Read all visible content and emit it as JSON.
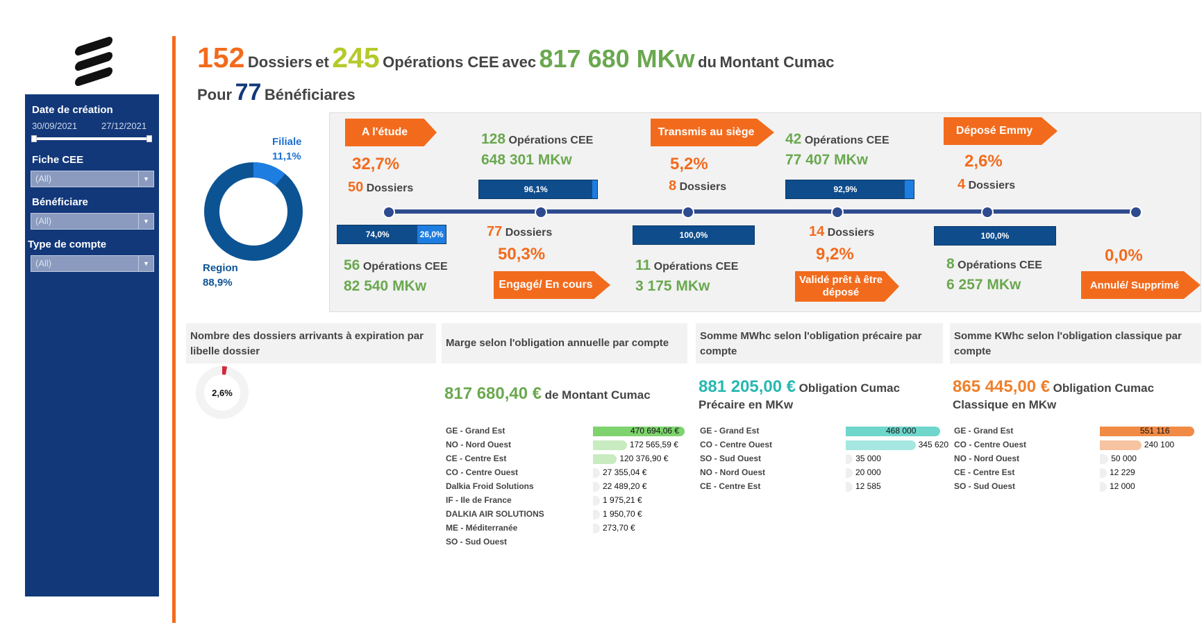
{
  "header": {
    "dossiers_count": "152",
    "dossiers_label": "Dossiers",
    "et": "et",
    "operations_count": "245",
    "operations_label": "Opérations CEE",
    "avec": "avec",
    "montant": "817 680 MKw",
    "du": "du",
    "montant_label": "Montant Cumac",
    "pour": "Pour",
    "beneficiaires_count": "77",
    "beneficiaires_label": "Bénéficiares"
  },
  "sidebar": {
    "date_label": "Date de création",
    "date_start": "30/09/2021",
    "date_end": "27/12/2021",
    "fiche_label": "Fiche CEE",
    "fiche_value": "(All)",
    "beneficiaire_label": "Bénéficiare",
    "beneficiaire_value": "(All)",
    "type_label": "Type de compte",
    "type_value": "(All)"
  },
  "donut": {
    "filiale_label": "Filiale",
    "filiale_pct": "11,1%",
    "region_label": "Region",
    "region_pct": "88,9%",
    "filiale_share": 0.111
  },
  "process": {
    "etude": {
      "label": "A l'étude",
      "pct": "32,7%",
      "dossiers_n": "50",
      "dossiers_label": "Dossiers",
      "ops_n": "56",
      "ops_label": "Opérations CEE",
      "mkw": "82 540 MKw",
      "bar_a": "74,0%",
      "bar_b": "26,0%"
    },
    "engage": {
      "label": "Engagé/ En cours",
      "pct": "50,3%",
      "dossiers_n": "77",
      "dossiers_label": "Dossiers",
      "ops_n": "128",
      "ops_label": "Opérations CEE",
      "mkw": "648 301 MKw",
      "bar": "96,1%"
    },
    "transmis": {
      "label": "Transmis au siège",
      "pct": "5,2%",
      "dossiers_n": "8",
      "dossiers_label": "Dossiers",
      "ops_n": "11",
      "ops_label": "Opérations CEE",
      "mkw": "3 175 MKw",
      "bar": "100,0%"
    },
    "valide": {
      "label": "Validé prêt à être déposé",
      "pct": "9,2%",
      "dossiers_n": "14",
      "dossiers_label": "Dossiers",
      "ops_n": "42",
      "ops_label": "Opérations CEE",
      "mkw": "77 407 MKw",
      "bar": "92,9%"
    },
    "depose": {
      "label": "Déposé Emmy",
      "pct": "2,6%",
      "dossiers_n": "4",
      "dossiers_label": "Dossiers",
      "ops_n": "8",
      "ops_label": "Opérations CEE",
      "mkw": "6 257 MKw",
      "bar": "100,0%"
    },
    "annule": {
      "label": "Annulé/ Supprimé",
      "pct": "0,0%"
    }
  },
  "panels": {
    "expiration": {
      "title": "Nombre des dossiers arrivants à expiration par libelle dossier",
      "pct": "2,6%",
      "share": 0.026
    },
    "marge": {
      "title": "Marge selon l'obligation annuelle par compte",
      "value": "817 680,40 €",
      "value_label": "de Montant Cumac",
      "rows": [
        {
          "label": "GE - Grand Est",
          "value": "470 694,06 €",
          "ratio": 1.0
        },
        {
          "label": "NO - Nord Ouest",
          "value": "172 565,59 €",
          "ratio": 0.37
        },
        {
          "label": "CE - Centre Est",
          "value": "120 376,90 €",
          "ratio": 0.26
        },
        {
          "label": "CO - Centre Ouest",
          "value": "27 355,04 €",
          "ratio": 0.06
        },
        {
          "label": "Dalkia Froid Solutions",
          "value": "22 489,20 €",
          "ratio": 0.05
        },
        {
          "label": "IF - Ile de France",
          "value": "1 975,21 €",
          "ratio": 0.004
        },
        {
          "label": "DALKIA AIR SOLUTIONS",
          "value": "1 950,70 €",
          "ratio": 0.004
        },
        {
          "label": "ME - Méditerranée",
          "value": "273,70 €",
          "ratio": 0.001
        },
        {
          "label": "SO - Sud Ouest",
          "value": "",
          "ratio": 0
        }
      ]
    },
    "precaire": {
      "title": "Somme MWhc selon l'obligation précaire par compte",
      "value": "881 205,00 €",
      "value_label": "Obligation Cumac",
      "value_sub": "Précaire en MKw",
      "rows": [
        {
          "label": "GE - Grand Est",
          "value": "468 000",
          "ratio": 1.0
        },
        {
          "label": "CO - Centre Ouest",
          "value": "345 620",
          "ratio": 0.74
        },
        {
          "label": "SO - Sud Ouest",
          "value": "35 000",
          "ratio": 0.075
        },
        {
          "label": "NO - Nord Ouest",
          "value": "20 000",
          "ratio": 0.043
        },
        {
          "label": "CE - Centre Est",
          "value": "12 585",
          "ratio": 0.027
        }
      ]
    },
    "classique": {
      "title": "Somme KWhc selon l'obligation classique par compte",
      "value": "865 445,00 €",
      "value_label": "Obligation Cumac",
      "value_sub": "Classique en MKw",
      "rows": [
        {
          "label": "GE - Grand Est",
          "value": "551 116",
          "ratio": 1.0
        },
        {
          "label": "CO - Centre Ouest",
          "value": "240 100",
          "ratio": 0.44
        },
        {
          "label": "NO - Nord Ouest",
          "value": "50 000",
          "ratio": 0.09
        },
        {
          "label": "CE - Centre Est",
          "value": "12 229",
          "ratio": 0.022
        },
        {
          "label": "SO - Sud Ouest",
          "value": "12 000",
          "ratio": 0.022
        }
      ]
    }
  },
  "colors": {
    "orange": "#f26b1d",
    "green": "#6aa84f",
    "lime": "#b5c92b",
    "navy": "#12387a",
    "teal": "#27b8b1"
  }
}
